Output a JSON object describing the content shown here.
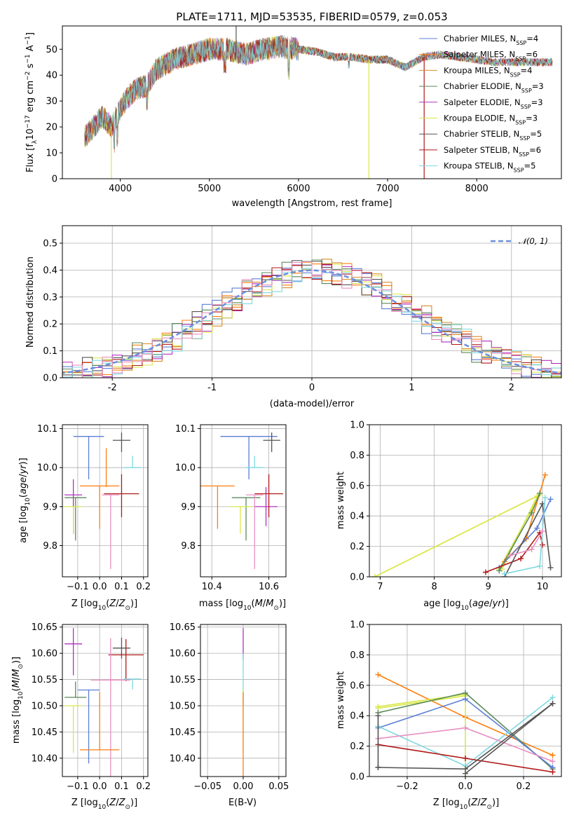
{
  "colors": {
    "chabrier_miles": "#5b7fd6",
    "salpeter_miles": "#ff7f0e",
    "kroupa_miles": "#d98c2a",
    "chabrier_elodie": "#5b8a5b",
    "salpeter_elodie": "#b030c0",
    "kroupa_elodie": "#d9e84a",
    "chabrier_stelib": "#555555",
    "salpeter_stelib": "#b01818",
    "kroupa_stelib": "#7fd8e0",
    "pink": "#e890c0",
    "normal": "#6a8fdc"
  },
  "chart_data": [
    {
      "type": "line",
      "title": "PLATE=1711, MJD=53535, FIBERID=0579, z=0.053",
      "xlabel": "wavelength [Angstrom, rest frame]",
      "ylabel": "Flux [f_λ 10^-17 erg cm^-2 s^-1 A^-1]",
      "xlim": [
        3350,
        8950
      ],
      "ylim": [
        0,
        59
      ],
      "xticks": [
        4000,
        5000,
        6000,
        7000,
        8000
      ],
      "yticks": [
        0,
        10,
        20,
        30,
        40,
        50
      ],
      "continuum": {
        "x": [
          3600,
          3700,
          3800,
          3900,
          4000,
          4100,
          4200,
          4300,
          4400,
          4500,
          4600,
          4800,
          5000,
          5200,
          5400,
          5600,
          5800,
          6000,
          6200,
          6400,
          6600,
          6800,
          7000,
          7200,
          7400,
          7600,
          7800,
          8000,
          8200,
          8400,
          8600,
          8850
        ],
        "y": [
          16,
          20,
          24,
          20,
          27,
          32,
          35,
          36,
          42,
          44,
          46,
          48,
          50,
          50,
          48,
          50,
          51,
          50,
          49,
          47,
          47,
          46,
          46,
          43,
          47,
          48,
          47,
          46,
          45,
          45,
          45,
          45
        ]
      },
      "legend": [
        {
          "label": "Chabrier MILES, N",
          "sub": "SSP",
          "n": "=4",
          "color": "chabrier_miles"
        },
        {
          "label": "Salpeter MILES, N",
          "sub": "SSP",
          "n": "=6",
          "color": "salpeter_miles"
        },
        {
          "label": "Kroupa MILES, N",
          "sub": "SSP",
          "n": "=4",
          "color": "kroupa_miles"
        },
        {
          "label": "Chabrier ELODIE, N",
          "sub": "SSP",
          "n": "=3",
          "color": "chabrier_elodie"
        },
        {
          "label": "Salpeter ELODIE, N",
          "sub": "SSP",
          "n": "=3",
          "color": "salpeter_elodie"
        },
        {
          "label": "Kroupa ELODIE, N",
          "sub": "SSP",
          "n": "=3",
          "color": "kroupa_elodie"
        },
        {
          "label": "Chabrier STELIB, N",
          "sub": "SSP",
          "n": "=5",
          "color": "chabrier_stelib"
        },
        {
          "label": "Salpeter STELIB, N",
          "sub": "SSP",
          "n": "=6",
          "color": "salpeter_stelib"
        },
        {
          "label": "Kroupa STELIB, N",
          "sub": "SSP",
          "n": "=5",
          "color": "kroupa_stelib"
        }
      ]
    },
    {
      "type": "histogram",
      "xlabel": "(data-model)/error",
      "ylabel": "Normed distribution",
      "xlim": [
        -2.5,
        2.5
      ],
      "ylim": [
        0,
        0.565
      ],
      "xticks": [
        -2,
        -1,
        0,
        1,
        2
      ],
      "yticks": [
        0.0,
        0.1,
        0.2,
        0.3,
        0.4,
        0.5
      ],
      "legend": "𝒩(0, 1)",
      "bin_width": 0.1
    },
    {
      "type": "errorbar",
      "xlabel": "Z [log10(Z/Z⊙)]",
      "ylabel": "age  [log10(age/yr)]",
      "xlim": [
        -0.17,
        0.22
      ],
      "ylim": [
        9.72,
        10.11
      ],
      "xticks": [
        -0.1,
        0.0,
        0.1,
        0.2
      ],
      "xtick_labels": [
        "−0.1",
        "0.0",
        "0.1",
        "0.2"
      ],
      "yticks": [
        9.8,
        9.9,
        10.0,
        10.1
      ],
      "points": [
        {
          "x": -0.05,
          "y": 10.08,
          "xerr": 0.07,
          "yerr": [
            0.11,
            0.0
          ],
          "color": "chabrier_miles"
        },
        {
          "x": 0.1,
          "y": 10.07,
          "xerr": 0.04,
          "yerr": [
            0.03,
            0.02
          ],
          "color": "chabrier_stelib"
        },
        {
          "x": 0.15,
          "y": 10.0,
          "xerr": 0.04,
          "yerr": [
            0.0,
            0.03
          ],
          "color": "kroupa_stelib"
        },
        {
          "x": 0.0,
          "y": 9.953,
          "xerr": 0.09,
          "yerr": [
            0.11,
            0.0
          ],
          "color": "salpeter_miles"
        },
        {
          "x": -0.12,
          "y": 9.93,
          "xerr": 0.04,
          "yerr": [
            0.1,
            0.04
          ],
          "color": "salpeter_elodie"
        },
        {
          "x": 0.1,
          "y": 9.933,
          "xerr": 0.08,
          "yerr": [
            0.06,
            0.05
          ],
          "color": "salpeter_stelib"
        },
        {
          "x": -0.11,
          "y": 9.923,
          "xerr": 0.05,
          "yerr": [
            0.11,
            0.0
          ],
          "color": "chabrier_elodie"
        },
        {
          "x": -0.12,
          "y": 9.9,
          "xerr": 0.04,
          "yerr": [
            0.07,
            0.0
          ],
          "color": "kroupa_elodie"
        },
        {
          "x": 0.05,
          "y": 9.93,
          "xerr": 0.04,
          "yerr": [
            0.19,
            0.0
          ],
          "color": "pink"
        },
        {
          "x": 0.03,
          "y": 9.95,
          "xerr": 0.0,
          "yerr": [
            0.0,
            0.1
          ],
          "color": "salpeter_miles"
        }
      ]
    },
    {
      "type": "errorbar",
      "xlabel": "mass [log10(M/M⊙)]",
      "xlim": [
        10.36,
        10.66
      ],
      "ylim": [
        9.72,
        10.11
      ],
      "xticks": [
        10.4,
        10.6
      ],
      "yticks": [
        9.8,
        9.9,
        10.0,
        10.1
      ],
      "points": [
        {
          "x": 10.53,
          "y": 10.08,
          "xerr": 0.1,
          "yerr": [
            0.11,
            0.0
          ],
          "color": "chabrier_miles"
        },
        {
          "x": 10.61,
          "y": 10.07,
          "xerr": 0.03,
          "yerr": [
            0.03,
            0.02
          ],
          "color": "chabrier_stelib"
        },
        {
          "x": 10.55,
          "y": 10.0,
          "xerr": 0.03,
          "yerr": [
            0.0,
            0.03
          ],
          "color": "kroupa_stelib"
        },
        {
          "x": 10.42,
          "y": 9.953,
          "xerr": 0.06,
          "yerr": [
            0.11,
            0.0
          ],
          "color": "salpeter_miles"
        },
        {
          "x": 10.59,
          "y": 9.9,
          "xerr": 0.04,
          "yerr": [
            0.05,
            0.05
          ],
          "color": "salpeter_elodie"
        },
        {
          "x": 10.6,
          "y": 9.933,
          "xerr": 0.05,
          "yerr": [
            0.06,
            0.05
          ],
          "color": "salpeter_stelib"
        },
        {
          "x": 10.52,
          "y": 9.923,
          "xerr": 0.05,
          "yerr": [
            0.11,
            0.0
          ],
          "color": "chabrier_elodie"
        },
        {
          "x": 10.5,
          "y": 9.9,
          "xerr": 0.04,
          "yerr": [
            0.07,
            0.0
          ],
          "color": "kroupa_elodie"
        },
        {
          "x": 10.55,
          "y": 9.93,
          "xerr": 0.03,
          "yerr": [
            0.19,
            0.0
          ],
          "color": "pink"
        }
      ]
    },
    {
      "type": "line",
      "xlabel": "age  [log10(age/yr)]",
      "ylabel": "mass weight",
      "xlim": [
        6.8,
        10.35
      ],
      "ylim": [
        0,
        1.0
      ],
      "xticks": [
        7,
        8,
        9,
        10
      ],
      "yticks": [
        0.0,
        0.2,
        0.4,
        0.6,
        0.8,
        1.0
      ],
      "series": [
        {
          "color": "kroupa_elodie",
          "x": [
            6.9,
            9.95,
            9.2
          ],
          "y": [
            0.0,
            0.54,
            0.05
          ]
        },
        {
          "color": "kroupa_elodie",
          "x": [
            6.9,
            9.9,
            9.25
          ],
          "y": [
            0.0,
            0.53,
            0.05
          ]
        },
        {
          "color": "salpeter_miles",
          "x": [
            9.3,
            9.7,
            10.05
          ],
          "y": [
            0.1,
            0.25,
            0.67
          ]
        },
        {
          "color": "chabrier_miles",
          "x": [
            9.2,
            9.9,
            10.15
          ],
          "y": [
            0.06,
            0.32,
            0.51
          ]
        },
        {
          "color": "chabrier_elodie",
          "x": [
            9.2,
            9.8,
            9.95
          ],
          "y": [
            0.04,
            0.42,
            0.55
          ]
        },
        {
          "color": "salpeter_stelib",
          "x": [
            8.95,
            9.6,
            9.95,
            10.0
          ],
          "y": [
            0.03,
            0.12,
            0.29,
            0.21
          ]
        },
        {
          "color": "chabrier_stelib",
          "x": [
            9.3,
            10.0,
            10.15
          ],
          "y": [
            0.0,
            0.48,
            0.06
          ]
        },
        {
          "color": "kroupa_stelib",
          "x": [
            9.3,
            9.95,
            10.05
          ],
          "y": [
            0.02,
            0.07,
            0.52
          ]
        },
        {
          "color": "pink",
          "x": [
            9.4,
            9.8,
            10.0
          ],
          "y": [
            0.14,
            0.18,
            0.3
          ]
        }
      ]
    },
    {
      "type": "errorbar",
      "xlabel": "Z [log10(Z/Z⊙)]",
      "ylabel": "mass [log10(M/M⊙)]",
      "xlim": [
        -0.17,
        0.22
      ],
      "ylim": [
        10.365,
        10.655
      ],
      "xticks": [
        -0.1,
        0.0,
        0.1,
        0.2
      ],
      "xtick_labels": [
        "−0.1",
        "0.0",
        "0.1",
        "0.2"
      ],
      "yticks": [
        10.4,
        10.45,
        10.5,
        10.55,
        10.6,
        10.65
      ],
      "points": [
        {
          "x": -0.12,
          "y": 10.618,
          "xerr": 0.04,
          "yerr": [
            0.06,
            0.03
          ],
          "color": "salpeter_elodie"
        },
        {
          "x": 0.1,
          "y": 10.61,
          "xerr": 0.04,
          "yerr": [
            0.02,
            0.02
          ],
          "color": "chabrier_stelib"
        },
        {
          "x": 0.12,
          "y": 10.597,
          "xerr": 0.08,
          "yerr": [
            0.05,
            0.03
          ],
          "color": "salpeter_stelib"
        },
        {
          "x": 0.05,
          "y": 10.549,
          "xerr": 0.09,
          "yerr": [
            0.2,
            0.08
          ],
          "color": "pink"
        },
        {
          "x": 0.15,
          "y": 10.551,
          "xerr": 0.04,
          "yerr": [
            0.02,
            0.0
          ],
          "color": "kroupa_stelib"
        },
        {
          "x": -0.05,
          "y": 10.53,
          "xerr": 0.05,
          "yerr": [
            0.14,
            0.0
          ],
          "color": "chabrier_miles"
        },
        {
          "x": -0.11,
          "y": 10.516,
          "xerr": 0.05,
          "yerr": [
            0.0,
            0.03
          ],
          "color": "chabrier_elodie"
        },
        {
          "x": -0.12,
          "y": 10.5,
          "xerr": 0.04,
          "yerr": [
            0.09,
            0.0
          ],
          "color": "kroupa_elodie"
        },
        {
          "x": 0.0,
          "y": 10.416,
          "xerr": 0.09,
          "yerr": [
            0.0,
            0.11
          ],
          "color": "salpeter_miles"
        }
      ]
    },
    {
      "type": "errorbar",
      "xlabel": "E(B-V)",
      "xlim": [
        -0.06,
        0.06
      ],
      "ylim": [
        10.365,
        10.655
      ],
      "xticks": [
        -0.05,
        0.0,
        0.05
      ],
      "xtick_labels": [
        "−0.05",
        "0.00",
        "0.05"
      ],
      "yticks": [
        10.4,
        10.45,
        10.5,
        10.55,
        10.6,
        10.65
      ],
      "points": [
        {
          "x": 0.0,
          "y": 10.618,
          "xerr": 0.0,
          "yerr": [
            0.03,
            0.03
          ],
          "color": "salpeter_elodie"
        },
        {
          "x": 0.0,
          "y": 10.55,
          "xerr": 0.0,
          "yerr": [
            0.05,
            0.05
          ],
          "color": "kroupa_stelib"
        },
        {
          "x": 0.0,
          "y": 10.48,
          "xerr": 0.0,
          "yerr": [
            0.07,
            0.05
          ],
          "color": "kroupa_elodie"
        },
        {
          "x": 0.0,
          "y": 10.416,
          "xerr": 0.0,
          "yerr": [
            0.05,
            0.11
          ],
          "color": "salpeter_miles"
        }
      ]
    },
    {
      "type": "line",
      "xlabel": "Z [log10(Z/Z⊙)]",
      "ylabel": "mass weight",
      "xlim": [
        -0.33,
        0.33
      ],
      "ylim": [
        0,
        1.0
      ],
      "xticks": [
        -0.2,
        0.0,
        0.2
      ],
      "xtick_labels": [
        "−0.2",
        "0.0",
        "0.2"
      ],
      "yticks": [
        0.0,
        0.2,
        0.4,
        0.6,
        0.8,
        1.0
      ],
      "series": [
        {
          "color": "salpeter_miles",
          "x": [
            -0.3,
            0.0,
            0.3
          ],
          "y": [
            0.67,
            0.39,
            0.14
          ]
        },
        {
          "color": "kroupa_elodie",
          "x": [
            -0.3,
            0.0
          ],
          "y": [
            0.46,
            0.54
          ]
        },
        {
          "color": "kroupa_elodie",
          "x": [
            -0.3,
            0.0,
            0.0
          ],
          "y": [
            0.45,
            0.53,
            0.0
          ]
        },
        {
          "color": "chabrier_elodie",
          "x": [
            -0.3,
            0.0,
            0.3
          ],
          "y": [
            0.42,
            0.55,
            0.05
          ]
        },
        {
          "color": "chabrier_miles",
          "x": [
            -0.3,
            0.0,
            0.3
          ],
          "y": [
            0.32,
            0.51,
            0.06
          ]
        },
        {
          "color": "kroupa_stelib",
          "x": [
            -0.3,
            0.0,
            0.3
          ],
          "y": [
            0.33,
            0.07,
            0.52
          ]
        },
        {
          "color": "pink",
          "x": [
            -0.3,
            0.0,
            0.3
          ],
          "y": [
            0.25,
            0.32,
            0.1
          ]
        },
        {
          "color": "salpeter_stelib",
          "x": [
            -0.3,
            0.0,
            0.3
          ],
          "y": [
            0.21,
            0.12,
            0.03
          ]
        },
        {
          "color": "chabrier_stelib",
          "x": [
            -0.3,
            0.0,
            0.3
          ],
          "y": [
            0.06,
            0.05,
            0.48
          ]
        },
        {
          "color": "chabrier_stelib",
          "x": [
            -0.3,
            -0.3
          ],
          "y": [
            0.06,
            0.4
          ]
        },
        {
          "color": "chabrier_stelib",
          "x": [
            0.0,
            0.3
          ],
          "y": [
            0.02,
            0.48
          ]
        }
      ]
    }
  ]
}
